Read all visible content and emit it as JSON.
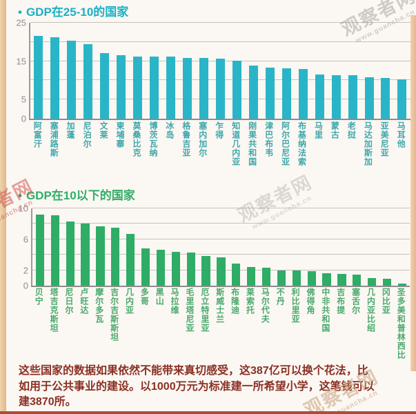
{
  "watermark": {
    "brand": "观察者网",
    "url": "www.guancha.cn"
  },
  "colors": {
    "teal_accent": "#29b5c7",
    "green_accent": "#2fac66",
    "footer_text": "#8a3023",
    "frame_strip": "#e9c79e",
    "bottom_line": "#b04a38",
    "axis_gray": "#8d8d8d"
  },
  "chart_data": [
    {
      "type": "bar",
      "bullet": "•",
      "title": "GDP在25-10的国家",
      "xlabel": "",
      "ylabel": "",
      "ylim": [
        0,
        25
      ],
      "grid_step": 5,
      "grid": true,
      "legend": false,
      "ytick_labels": [
        25,
        15,
        5,
        0
      ],
      "bar_color": "#29b5c7",
      "label_color": "#3fa7ab",
      "categories": [
        "阿富汗",
        "塞浦路斯",
        "加蓬",
        "尼泊尔",
        "文莱",
        "柬埔寨",
        "莫桑比克",
        "博茨瓦纳",
        "冰岛",
        "格鲁吉亚",
        "塞内加尔",
        "乍得",
        "知道几内亚",
        "刚果共和国",
        "津巴布韦",
        "阿尔巴尼亚",
        "布基纳法索",
        "马里",
        "蒙古",
        "老挝",
        "马达加斯加",
        "亚美尼亚",
        "马耳他"
      ],
      "values": [
        21.6,
        21.2,
        20.4,
        19.5,
        17.1,
        16.5,
        16.2,
        16.1,
        16.1,
        15.9,
        15.8,
        15.6,
        15.2,
        13.8,
        13.4,
        13.1,
        12.9,
        11.6,
        11.4,
        11.3,
        10.8,
        10.6,
        10.3
      ]
    },
    {
      "type": "bar",
      "bullet": "•",
      "title": "GDP在10以下的国家",
      "xlabel": "",
      "ylabel": "",
      "ylim": [
        0,
        10
      ],
      "grid_step": 2,
      "grid": true,
      "legend": false,
      "ytick_labels": [
        10,
        6,
        2,
        0
      ],
      "bar_color": "#2fac66",
      "label_color": "#4aa96d",
      "categories": [
        "贝宁",
        "塔吉克斯坦",
        "尼日尔",
        "卢旺达",
        "摩尔多瓦",
        "吉尔吉斯斯坦",
        "几内亚",
        "多哥",
        "黑山",
        "马拉维",
        "毛里塔尼亚",
        "厄立特里亚",
        "斯威士兰",
        "布隆迪",
        "莱索托",
        "马尔代夫",
        "不丹",
        "利比里亚",
        "佛得角",
        "中非共和国",
        "吉布提",
        "塞舌尔",
        "几内亚比绍",
        "冈比亚",
        "圣多美和普林西比"
      ],
      "values": [
        9.2,
        9.1,
        8.3,
        8.0,
        7.7,
        7.5,
        6.7,
        4.8,
        4.6,
        4.4,
        4.3,
        3.8,
        3.7,
        2.9,
        2.4,
        2.3,
        2.0,
        2.0,
        1.9,
        1.6,
        1.5,
        1.4,
        1.0,
        0.9,
        0.3
      ]
    }
  ],
  "footer": {
    "lines": [
      "这些国家的数据如果依然不能带来真切感受，这387亿可以换个花法，比",
      "如用于公共事业的建设。以1000万元为标准建一所希望小学，这笔钱可以",
      "建3870所。"
    ]
  }
}
